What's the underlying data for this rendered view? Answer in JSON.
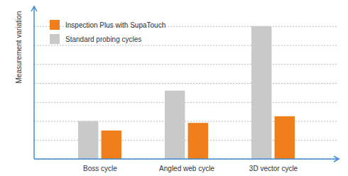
{
  "chart_data": {
    "type": "bar",
    "categories": [
      "Boss cycle",
      "Angled web cycle",
      "3D vector cycle"
    ],
    "series": [
      {
        "name": "Inspection Plus with SupaTouch",
        "color": "#f07e1b",
        "values": [
          1.5,
          1.9,
          2.25
        ]
      },
      {
        "name": "Standard probing cycles",
        "color": "#c9c9c9",
        "values": [
          2.0,
          3.6,
          7.0
        ]
      }
    ],
    "y_label": "Measurement variation",
    "ylim": [
      0,
      8
    ],
    "yticks": [
      0,
      1,
      2,
      3,
      4,
      5,
      6,
      7
    ],
    "grid": true,
    "tick_labels": "x",
    "legend": "upper left"
  }
}
